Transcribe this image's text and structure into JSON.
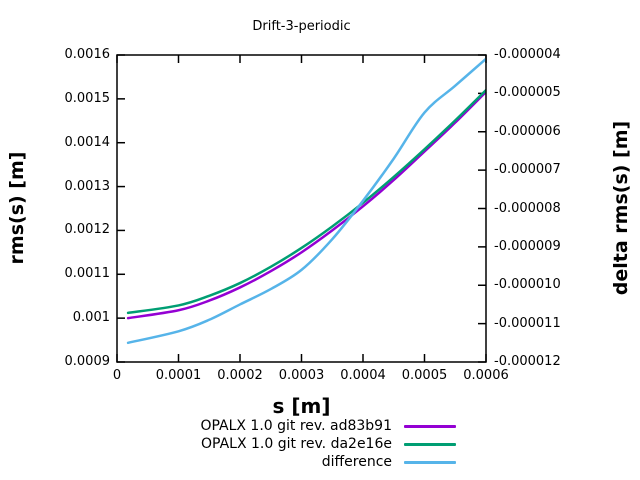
{
  "chart_data": {
    "type": "line",
    "title": "Drift-3-periodic",
    "xlabel": "s [m]",
    "ylabel": "rms(s) [m]",
    "y2label": "delta rms(s) [m]",
    "xlim": [
      0,
      0.0006
    ],
    "ylim": [
      0.0009,
      0.0016
    ],
    "y2lim": [
      -1.2e-05,
      -4e-06
    ],
    "x_ticks": [
      "0",
      "0.0001",
      "0.0002",
      "0.0003",
      "0.0004",
      "0.0005",
      "0.0006"
    ],
    "y_ticks": [
      "0.0009",
      "0.001",
      "0.0011",
      "0.0012",
      "0.0013",
      "0.0014",
      "0.0015",
      "0.0016"
    ],
    "y2_ticks": [
      "-0.000012",
      "-0.000011",
      "-0.000010",
      "-0.000009",
      "-0.000008",
      "-0.000007",
      "-0.000006",
      "-0.000005",
      "-0.000004"
    ],
    "grid": false,
    "legend_position": "below-plot-right",
    "background_color": "#ffffff",
    "border_color": "#000000",
    "series": [
      {
        "name": "OPALX 1.0 git rev. ad83b91",
        "color": "#9400d3",
        "axis": "y",
        "points": [
          [
            1.8e-05,
            0.001
          ],
          [
            0.0001,
            0.001018
          ],
          [
            0.00015,
            0.00104
          ],
          [
            0.0002,
            0.00107
          ],
          [
            0.00025,
            0.001107
          ],
          [
            0.0003,
            0.00115
          ],
          [
            0.00035,
            0.0012
          ],
          [
            0.0004,
            0.001255
          ],
          [
            0.00045,
            0.001315
          ],
          [
            0.0005,
            0.00138
          ],
          [
            0.00055,
            0.001446
          ],
          [
            0.0006,
            0.001516
          ]
        ]
      },
      {
        "name": "OPALX 1.0 git rev. da2e16e",
        "color": "#009e73",
        "axis": "y",
        "points": [
          [
            1.8e-05,
            0.001012
          ],
          [
            0.0001,
            0.001029
          ],
          [
            0.00015,
            0.001051
          ],
          [
            0.0002,
            0.00108
          ],
          [
            0.00025,
            0.001117
          ],
          [
            0.0003,
            0.00116
          ],
          [
            0.00035,
            0.001209
          ],
          [
            0.0004,
            0.001263
          ],
          [
            0.00045,
            0.001322
          ],
          [
            0.0005,
            0.001385
          ],
          [
            0.00055,
            0.001451
          ],
          [
            0.0006,
            0.00152
          ]
        ]
      },
      {
        "name": "difference",
        "color": "#56b4e9",
        "axis": "y2",
        "points": [
          [
            1.8e-05,
            -1.15e-05
          ],
          [
            0.0001,
            -1.12e-05
          ],
          [
            0.00015,
            -1.09e-05
          ],
          [
            0.0002,
            -1.05e-05
          ],
          [
            0.00025,
            -1.01e-05
          ],
          [
            0.0003,
            -9.6e-06
          ],
          [
            0.00035,
            -8.8e-06
          ],
          [
            0.0004,
            -7.8e-06
          ],
          [
            0.00045,
            -6.7e-06
          ],
          [
            0.0005,
            -5.5e-06
          ],
          [
            0.00055,
            -4.8e-06
          ],
          [
            0.0006,
            -4.1e-06
          ]
        ]
      }
    ]
  }
}
